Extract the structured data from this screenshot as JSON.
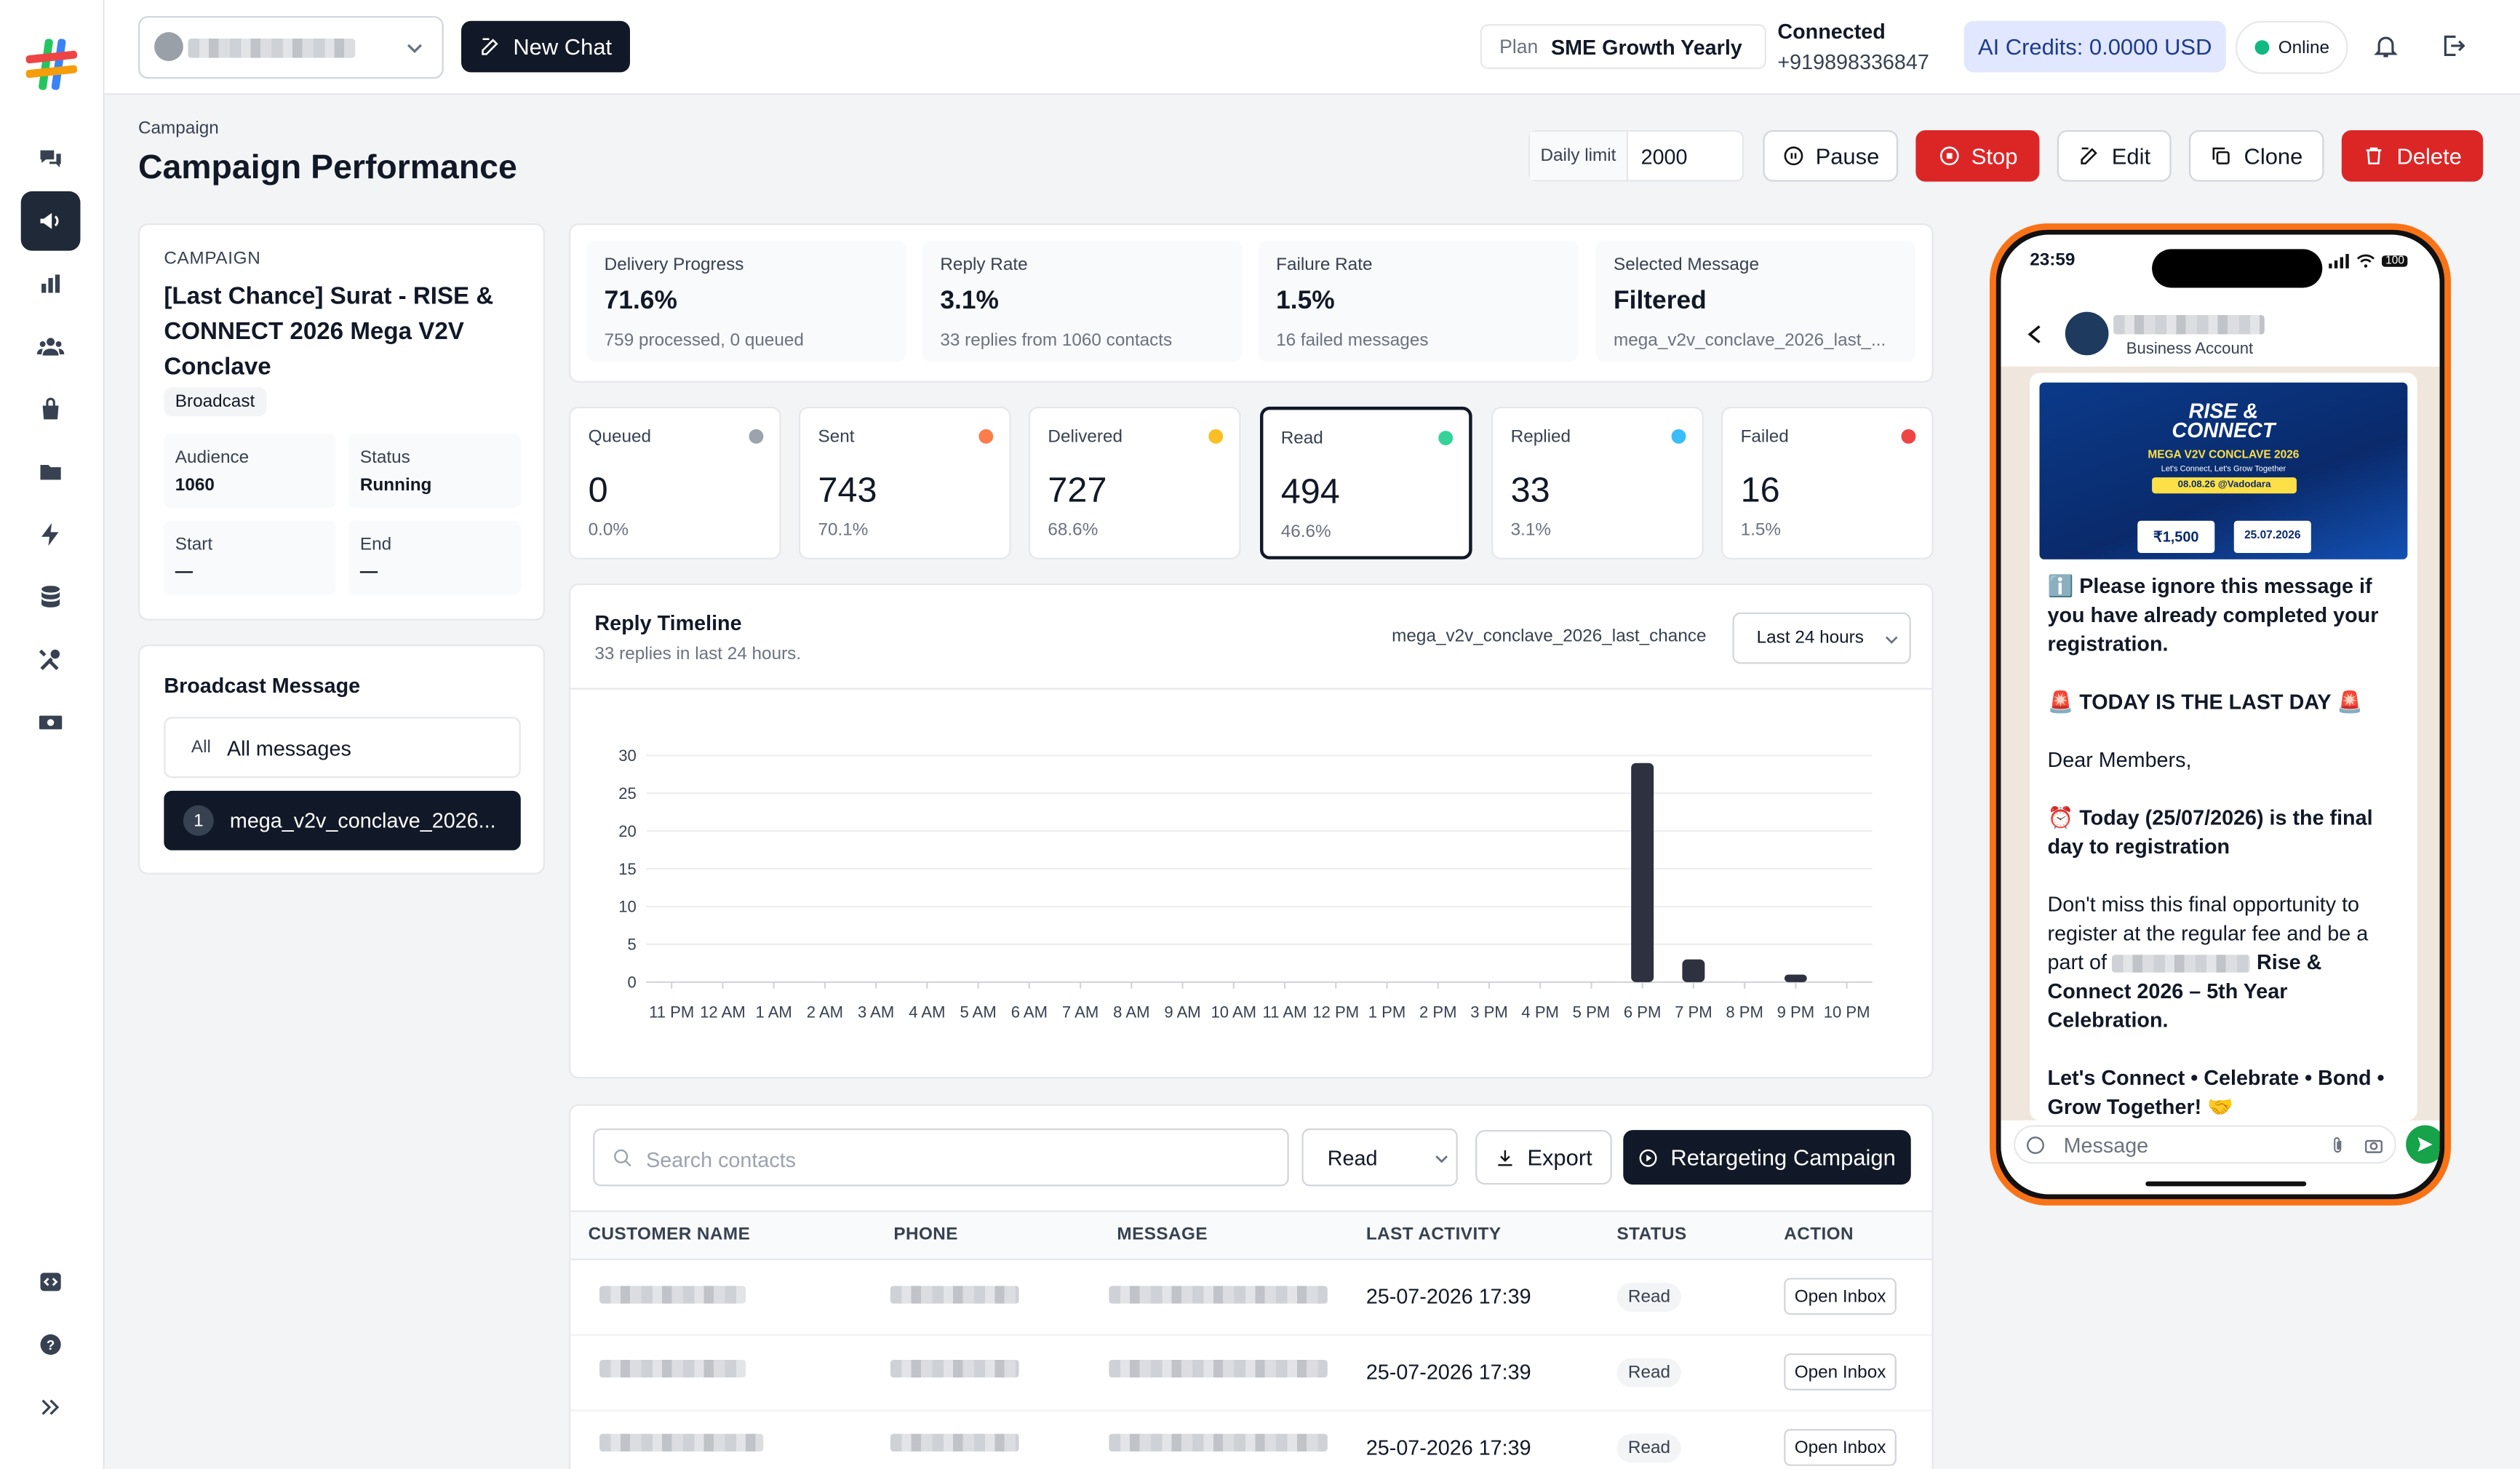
{
  "topbar": {
    "new_chat_label": "New Chat",
    "plan_label": "Plan",
    "plan_value": "SME Growth Yearly",
    "connected_label": "Connected",
    "connected_phone": "+919898336847",
    "credits": "AI Credits: 0.0000 USD",
    "status": "Online"
  },
  "header": {
    "breadcrumb": "Campaign",
    "title": "Campaign Performance",
    "daily_limit_label": "Daily limit",
    "daily_limit_value": "2000",
    "pause_label": "Pause",
    "stop_label": "Stop",
    "edit_label": "Edit",
    "clone_label": "Clone",
    "delete_label": "Delete"
  },
  "campaign": {
    "section_label": "CAMPAIGN",
    "name": "[Last Chance] Surat - RISE & CONNECT 2026 Mega V2V Conclave",
    "type_badge": "Broadcast",
    "audience_label": "Audience",
    "audience_value": "1060",
    "status_label": "Status",
    "status_value": "Running",
    "start_label": "Start",
    "start_value": "—",
    "end_label": "End",
    "end_value": "—"
  },
  "broadcast": {
    "title": "Broadcast Message",
    "all_tag": "All",
    "all_label": "All messages",
    "item_index": "1",
    "item_label": "mega_v2v_conclave_2026..."
  },
  "summary": [
    {
      "label": "Delivery Progress",
      "value": "71.6%",
      "sub": "759 processed, 0 queued"
    },
    {
      "label": "Reply Rate",
      "value": "3.1%",
      "sub": "33 replies from 1060 contacts"
    },
    {
      "label": "Failure Rate",
      "value": "1.5%",
      "sub": "16 failed messages"
    },
    {
      "label": "Selected Message",
      "value": "Filtered",
      "sub": "mega_v2v_conclave_2026_last_..."
    }
  ],
  "statuses": [
    {
      "label": "Queued",
      "value": "0",
      "pct": "0.0%",
      "color": "#9ca3af"
    },
    {
      "label": "Sent",
      "value": "743",
      "pct": "70.1%",
      "color": "#fb7d4e"
    },
    {
      "label": "Delivered",
      "value": "727",
      "pct": "68.6%",
      "color": "#fbbf24"
    },
    {
      "label": "Read",
      "value": "494",
      "pct": "46.6%",
      "color": "#34d399"
    },
    {
      "label": "Replied",
      "value": "33",
      "pct": "3.1%",
      "color": "#38bdf8"
    },
    {
      "label": "Failed",
      "value": "16",
      "pct": "1.5%",
      "color": "#ef4444"
    }
  ],
  "timeline": {
    "title": "Reply Timeline",
    "subtitle": "33 replies in last 24 hours.",
    "template": "mega_v2v_conclave_2026_last_chance",
    "range": "Last 24 hours"
  },
  "chart_data": {
    "type": "bar",
    "categories": [
      "11 PM",
      "12 AM",
      "1 AM",
      "2 AM",
      "3 AM",
      "4 AM",
      "5 AM",
      "6 AM",
      "7 AM",
      "8 AM",
      "9 AM",
      "10 AM",
      "11 AM",
      "12 PM",
      "1 PM",
      "2 PM",
      "3 PM",
      "4 PM",
      "5 PM",
      "6 PM",
      "7 PM",
      "8 PM",
      "9 PM",
      "10 PM"
    ],
    "values": [
      0,
      0,
      0,
      0,
      0,
      0,
      0,
      0,
      0,
      0,
      0,
      0,
      0,
      0,
      0,
      0,
      0,
      0,
      0,
      29,
      3,
      0,
      1,
      0
    ],
    "yticks": [
      "0",
      "5",
      "10",
      "15",
      "20",
      "25",
      "30"
    ],
    "ylim": [
      0,
      30
    ],
    "bar_color": "#2d3140"
  },
  "contacts": {
    "search_placeholder": "Search contacts",
    "filter_value": "Read",
    "export_label": "Export",
    "retarget_label": "Retargeting Campaign",
    "columns": [
      "CUSTOMER NAME",
      "PHONE",
      "MESSAGE",
      "LAST ACTIVITY",
      "STATUS",
      "ACTION"
    ],
    "rows": [
      {
        "last_activity": "25-07-2026 17:39",
        "status": "Read",
        "action": "Open Inbox"
      },
      {
        "last_activity": "25-07-2026 17:39",
        "status": "Read",
        "action": "Open Inbox"
      },
      {
        "last_activity": "25-07-2026 17:39",
        "status": "Read",
        "action": "Open Inbox"
      }
    ]
  },
  "phone": {
    "time": "23:59",
    "battery": "100",
    "account_label": "Business Account",
    "banner_title_1": "RISE &",
    "banner_title_2": "CONNECT",
    "banner_subtitle": "MEGA V2V CONCLAVE 2026",
    "banner_tagline": "Let's Connect, Let's Grow Together",
    "banner_date": "08.08.26 @Vadodara",
    "banner_fee": "₹1,500",
    "banner_valid": "25.07.2026",
    "msg_note": "ℹ️ Please ignore this message if you have already completed your registration.",
    "msg_last_day": "🚨 TODAY IS THE LAST DAY 🚨",
    "msg_greeting": "Dear Members,",
    "msg_final_day": "⏰ Today (25/07/2026) is the final day to registration",
    "msg_body_1": "Don't miss this final opportunity to register at the regular fee and be a part of",
    "msg_body_2": "Rise & Connect 2026 – 5th Year Celebration.",
    "msg_tagline": "Let's Connect • Celebrate • Bond • Grow Together! 🤝",
    "input_placeholder": "Message"
  }
}
